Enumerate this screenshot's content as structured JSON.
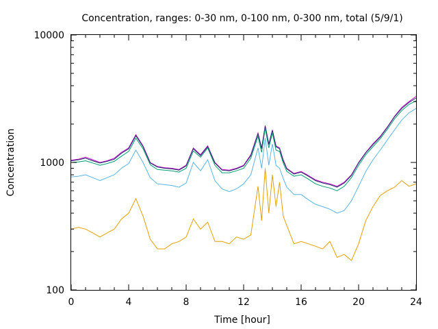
{
  "chart_data": {
    "type": "line",
    "title": "Concentration, ranges: 0-30 nm, 0-100 nm, 0-300 nm, total (5/9/1)",
    "xlabel": "Time [hour]",
    "ylabel": "Concentration",
    "xlim": [
      0,
      24
    ],
    "ylim": [
      100,
      10000
    ],
    "yscale": "log",
    "grid": false,
    "legend": "none",
    "x_ticks": [
      0,
      4,
      8,
      12,
      16,
      20,
      24
    ],
    "x_tick_labels": [
      "0",
      "4",
      "8",
      "12",
      "16",
      "20",
      "24"
    ],
    "y_ticks": [
      100,
      1000,
      10000
    ],
    "y_tick_labels": [
      "100",
      "1000",
      "10000"
    ],
    "x": [
      0,
      0.5,
      1,
      1.5,
      2,
      2.5,
      3,
      3.5,
      4,
      4.5,
      5,
      5.5,
      6,
      6.5,
      7,
      7.5,
      8,
      8.5,
      9,
      9.5,
      10,
      10.5,
      11,
      11.5,
      12,
      12.5,
      13,
      13.25,
      13.5,
      13.75,
      14,
      14.25,
      14.5,
      14.75,
      15,
      15.5,
      16,
      16.5,
      17,
      17.5,
      18,
      18.5,
      19,
      19.5,
      20,
      20.5,
      21,
      21.5,
      22,
      22.5,
      23,
      23.5,
      24
    ],
    "series": [
      {
        "color": "#cc00cc",
        "values": [
          1040,
          1060,
          1100,
          1050,
          1000,
          1030,
          1080,
          1200,
          1300,
          1650,
          1350,
          1000,
          930,
          910,
          900,
          880,
          950,
          1300,
          1150,
          1350,
          1000,
          880,
          870,
          900,
          950,
          1150,
          1700,
          1300,
          1950,
          1400,
          1800,
          1350,
          1300,
          1050,
          900,
          820,
          850,
          790,
          730,
          700,
          680,
          650,
          700,
          800,
          1000,
          1200,
          1400,
          1600,
          1900,
          2300,
          2700,
          3000,
          3300
        ]
      },
      {
        "color": "#1a3366",
        "values": [
          1030,
          1050,
          1080,
          1030,
          990,
          1020,
          1060,
          1180,
          1280,
          1620,
          1330,
          990,
          920,
          900,
          890,
          870,
          940,
          1280,
          1130,
          1330,
          990,
          870,
          860,
          890,
          940,
          1130,
          1680,
          1280,
          1920,
          1380,
          1780,
          1330,
          1280,
          1030,
          890,
          810,
          840,
          780,
          720,
          690,
          670,
          640,
          690,
          790,
          990,
          1190,
          1380,
          1580,
          1880,
          2280,
          2650,
          2950,
          3200
        ]
      },
      {
        "color": "#009e73",
        "values": [
          1000,
          1010,
          1030,
          990,
          950,
          980,
          1020,
          1120,
          1220,
          1550,
          1280,
          960,
          880,
          870,
          860,
          840,
          900,
          1230,
          1100,
          1300,
          950,
          830,
          830,
          860,
          900,
          1080,
          1600,
          1200,
          1850,
          1300,
          1700,
          1250,
          1220,
          990,
          850,
          780,
          800,
          740,
          680,
          650,
          630,
          600,
          650,
          760,
          950,
          1150,
          1330,
          1530,
          1820,
          2200,
          2550,
          2850,
          3050
        ]
      },
      {
        "color": "#56b4e9",
        "values": [
          770,
          780,
          800,
          760,
          720,
          760,
          800,
          900,
          980,
          1250,
          1000,
          760,
          680,
          670,
          660,
          640,
          690,
          1000,
          860,
          1050,
          720,
          620,
          590,
          620,
          680,
          800,
          1300,
          900,
          1550,
          950,
          1400,
          950,
          900,
          750,
          640,
          560,
          560,
          510,
          470,
          450,
          430,
          400,
          420,
          500,
          650,
          850,
          1050,
          1250,
          1500,
          1800,
          2150,
          2450,
          2650
        ]
      },
      {
        "color": "#e69f00",
        "values": [
          300,
          310,
          300,
          280,
          260,
          280,
          300,
          360,
          400,
          520,
          380,
          250,
          210,
          210,
          230,
          240,
          260,
          360,
          300,
          340,
          240,
          240,
          230,
          260,
          250,
          270,
          650,
          350,
          900,
          400,
          800,
          450,
          700,
          380,
          320,
          230,
          240,
          230,
          220,
          210,
          240,
          180,
          190,
          170,
          230,
          350,
          450,
          550,
          600,
          640,
          720,
          650,
          680
        ]
      }
    ]
  }
}
